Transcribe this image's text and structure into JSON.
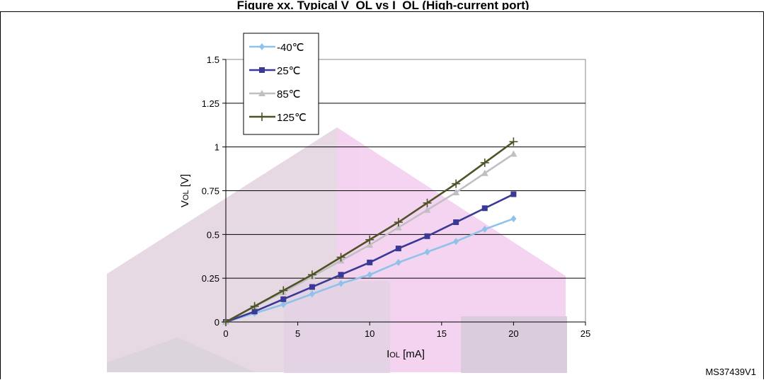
{
  "header": {
    "title_fragment": "Figure xx. Typical V_OL vs I_OL (High-current port)"
  },
  "figure_code": "MS37439V1",
  "chart_data": {
    "type": "line",
    "xlabel_main": "I",
    "xlabel_sub": "OL",
    "xlabel_unit": " [mA]",
    "ylabel_main": "V",
    "ylabel_sub": "OL",
    "ylabel_unit": " [V]",
    "xlim": [
      0,
      25
    ],
    "ylim": [
      0,
      1.5
    ],
    "xticks": [
      "0",
      "5",
      "10",
      "15",
      "20",
      "25"
    ],
    "yticks": [
      "0",
      "0.25",
      "0.5",
      "0.75",
      "1",
      "1.25",
      "1.5"
    ],
    "grid": "horizontal",
    "legend_position": "top-left",
    "x": [
      0,
      2,
      4,
      6,
      8,
      10,
      12,
      14,
      16,
      18,
      20
    ],
    "series": [
      {
        "name": "-40℃",
        "color": "#8fc2e8",
        "marker": "diamond",
        "values": [
          0,
          0.05,
          0.1,
          0.16,
          0.22,
          0.27,
          0.34,
          0.4,
          0.46,
          0.53,
          0.59
        ]
      },
      {
        "name": "25℃",
        "color": "#3a3a96",
        "marker": "square",
        "values": [
          0,
          0.06,
          0.13,
          0.2,
          0.27,
          0.34,
          0.42,
          0.49,
          0.57,
          0.65,
          0.73
        ]
      },
      {
        "name": "85℃",
        "color": "#c0c0c4",
        "marker": "triangle",
        "values": [
          0,
          0.09,
          0.17,
          0.26,
          0.35,
          0.44,
          0.54,
          0.64,
          0.74,
          0.85,
          0.96
        ]
      },
      {
        "name": "125℃",
        "color": "#4f5224",
        "marker": "plus",
        "values": [
          0,
          0.09,
          0.18,
          0.27,
          0.37,
          0.47,
          0.57,
          0.68,
          0.79,
          0.91,
          1.03
        ]
      }
    ]
  }
}
